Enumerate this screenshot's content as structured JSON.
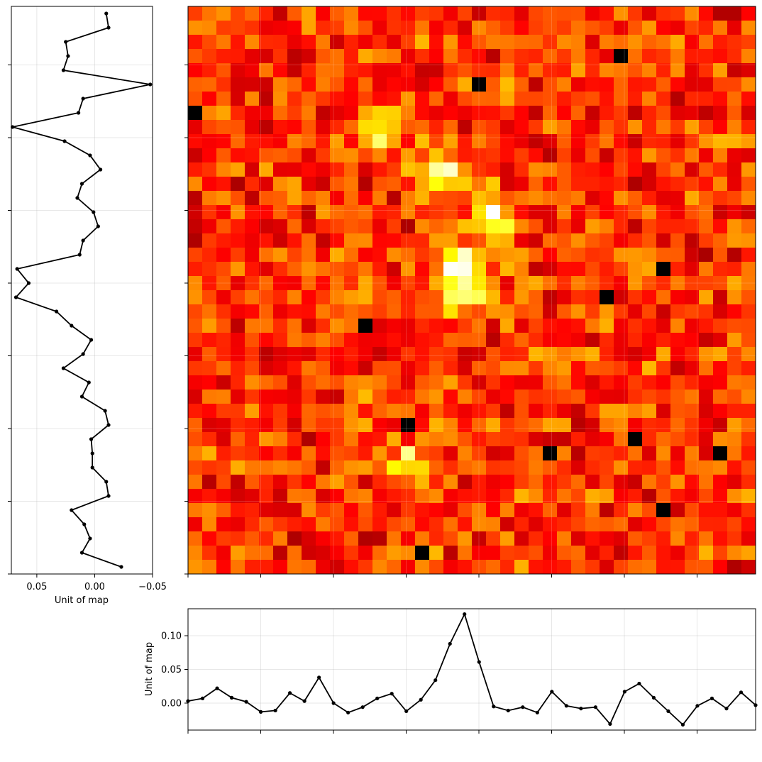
{
  "chart_data": [
    {
      "type": "heatmap",
      "title": "",
      "grid_rows": 40,
      "grid_cols": 40,
      "colormap": "gist_heat_r",
      "color_range": "white (high) to black (low)",
      "bright_spots": [
        {
          "row": 18,
          "col": 19,
          "level": 1.0
        },
        {
          "row": 11,
          "col": 17,
          "level": 0.9
        },
        {
          "row": 8,
          "col": 13,
          "level": 0.75
        },
        {
          "row": 14,
          "col": 21,
          "level": 0.8
        },
        {
          "row": 20,
          "col": 19,
          "level": 0.7
        },
        {
          "row": 32,
          "col": 15,
          "level": 0.7
        }
      ],
      "dark_spots": [
        {
          "row": 5,
          "col": 20
        },
        {
          "row": 7,
          "col": 0
        },
        {
          "row": 18,
          "col": 33
        },
        {
          "row": 20,
          "col": 29
        },
        {
          "row": 22,
          "col": 12
        },
        {
          "row": 29,
          "col": 15
        },
        {
          "row": 30,
          "col": 31
        },
        {
          "row": 31,
          "col": 25
        },
        {
          "row": 31,
          "col": 37
        },
        {
          "row": 35,
          "col": 33
        },
        {
          "row": 38,
          "col": 16
        },
        {
          "row": 3,
          "col": 30
        }
      ],
      "grid": true
    },
    {
      "type": "line",
      "orientation": "vertical",
      "xlabel": "Unit of map",
      "ylabel": "",
      "x_ticks": [
        "0.05",
        "0.00",
        "−0.05"
      ],
      "xlim": [
        0.072,
        -0.05
      ],
      "x_inverted": true,
      "values": [
        -0.01,
        -0.012,
        0.025,
        0.023,
        0.027,
        -0.048,
        0.01,
        0.014,
        0.071,
        0.026,
        0.004,
        -0.005,
        0.011,
        0.015,
        0.001,
        -0.003,
        0.01,
        0.013,
        0.067,
        0.057,
        0.068,
        0.033,
        0.02,
        0.003,
        0.01,
        0.027,
        0.005,
        0.011,
        -0.009,
        -0.012,
        0.003,
        0.002,
        0.002,
        -0.01,
        -0.012,
        0.02,
        0.009,
        0.004,
        0.011,
        -0.023
      ],
      "grid": true
    },
    {
      "type": "line",
      "orientation": "horizontal",
      "xlabel": "",
      "ylabel": "Unit of map",
      "y_ticks": [
        "0.00",
        "0.05",
        "0.10"
      ],
      "ylim": [
        -0.04,
        0.14
      ],
      "values": [
        0.003,
        0.007,
        0.022,
        0.008,
        0.002,
        -0.013,
        -0.011,
        0.015,
        0.003,
        0.038,
        0.0,
        -0.014,
        -0.006,
        0.007,
        0.014,
        -0.012,
        0.005,
        0.034,
        0.088,
        0.132,
        0.061,
        -0.005,
        -0.011,
        -0.006,
        -0.014,
        0.017,
        -0.004,
        -0.008,
        -0.006,
        -0.031,
        0.017,
        0.029,
        0.008,
        -0.012,
        -0.032,
        -0.004,
        0.007,
        -0.008,
        0.016,
        -0.003
      ],
      "grid": true
    }
  ]
}
